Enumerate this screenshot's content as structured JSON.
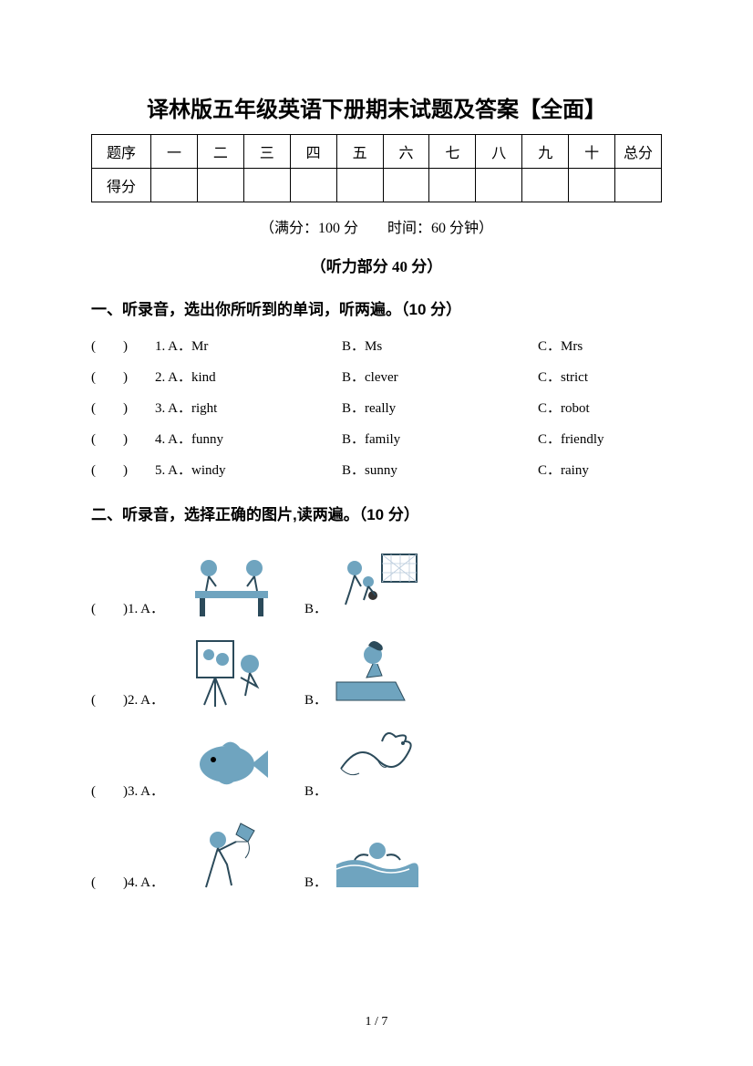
{
  "title": "译林版五年级英语下册期末试题及答案【全面】",
  "score_table": {
    "row1": [
      "题序",
      "一",
      "二",
      "三",
      "四",
      "五",
      "六",
      "七",
      "八",
      "九",
      "十",
      "总分"
    ],
    "row2_first": "得分"
  },
  "info_line": "（满分：100 分　　时间：60 分钟）",
  "listening_header": "（听力部分 40 分）",
  "q1": {
    "heading": "一、听录音，选出你所听到的单词，听两遍。（10 分）",
    "rows": [
      {
        "n": "1",
        "a": "Mr",
        "b": "Ms",
        "c": "Mrs"
      },
      {
        "n": "2",
        "a": "kind",
        "b": "clever",
        "c": "strict"
      },
      {
        "n": "3",
        "a": "right",
        "b": "really",
        "c": "robot"
      },
      {
        "n": "4",
        "a": "funny",
        "b": "family",
        "c": "friendly"
      },
      {
        "n": "5",
        "a": "windy",
        "b": "sunny",
        "c": "rainy"
      }
    ]
  },
  "q2": {
    "heading": "二、听录音，选择正确的图片,读两遍。（10 分）",
    "rows": [
      {
        "n": "1"
      },
      {
        "n": "2"
      },
      {
        "n": "3"
      },
      {
        "n": "4"
      }
    ]
  },
  "page_num": "1 / 7",
  "svg_color": "#6fa4bf",
  "svg_dark": "#2b4a5a"
}
